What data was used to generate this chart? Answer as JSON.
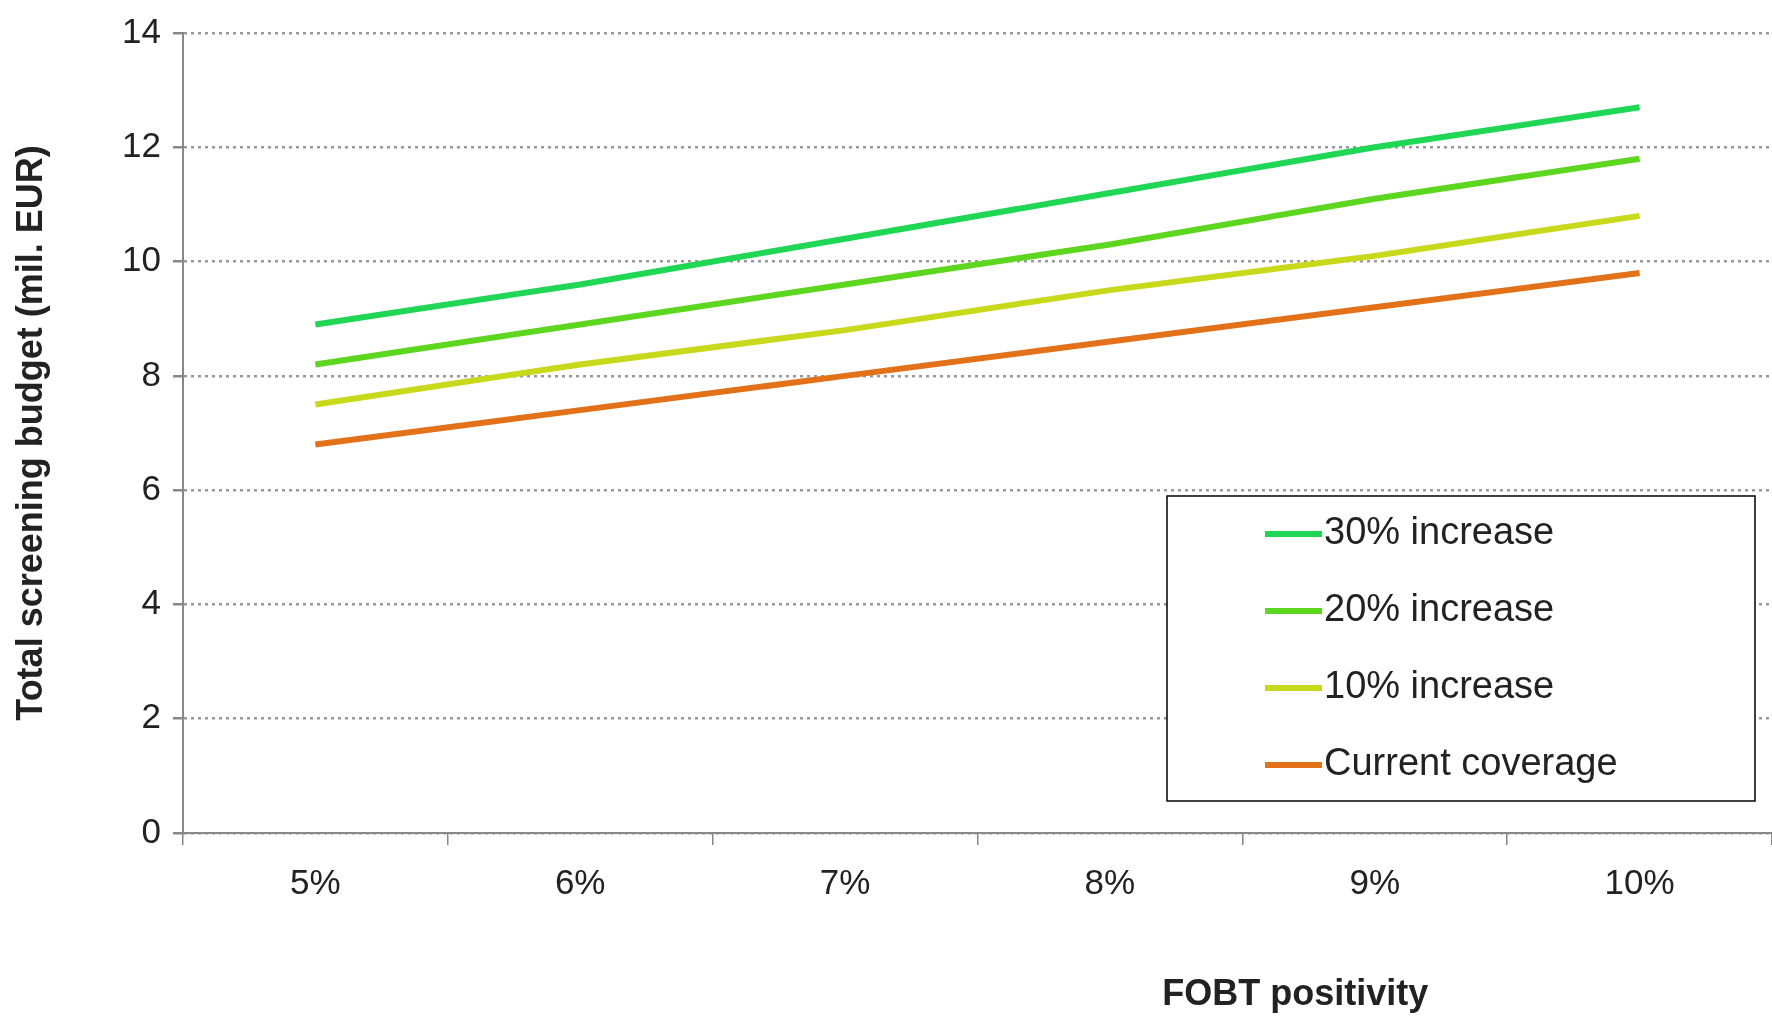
{
  "chart_data": {
    "type": "line",
    "xlabel": "FOBT positivity",
    "ylabel": "Total screening budget (mil. EUR)",
    "categories": [
      "5%",
      "6%",
      "7%",
      "8%",
      "9%",
      "10%"
    ],
    "series": [
      {
        "name": "30% increase",
        "color": "#1fd655",
        "values": [
          8.9,
          9.6,
          10.4,
          11.2,
          12.0,
          12.7
        ]
      },
      {
        "name": "20% increase",
        "color": "#5cd61f",
        "values": [
          8.2,
          8.9,
          9.6,
          10.3,
          11.1,
          11.8
        ]
      },
      {
        "name": "10% increase",
        "color": "#c8d81a",
        "values": [
          7.5,
          8.2,
          8.8,
          9.5,
          10.1,
          10.8
        ]
      },
      {
        "name": "Current coverage",
        "color": "#e2711a",
        "values": [
          6.8,
          7.4,
          8.0,
          8.6,
          9.2,
          9.8
        ]
      }
    ],
    "ylim": [
      0,
      14
    ],
    "yticks": [
      0,
      2,
      4,
      6,
      8,
      10,
      12,
      14
    ],
    "grid": "y",
    "legend": "bottom right",
    "marker": "none",
    "line_style": "solid"
  }
}
